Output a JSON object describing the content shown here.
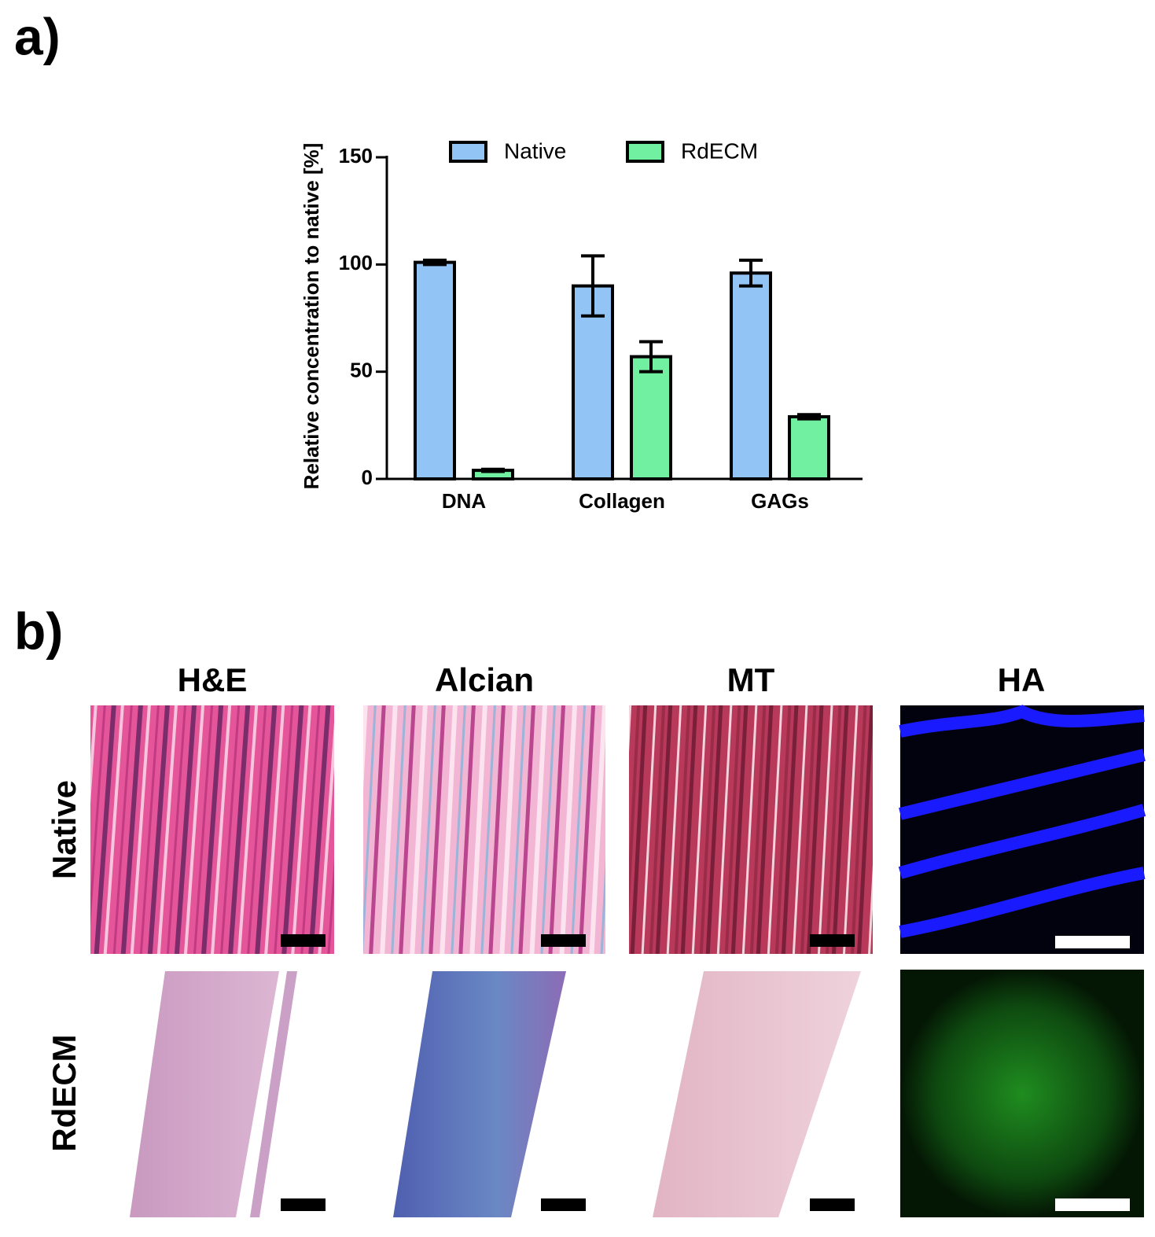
{
  "panel_labels": {
    "a": "a)",
    "b": "b)"
  },
  "chart_data": {
    "type": "bar",
    "ylabel": "Relative concentration to native [%]",
    "categories": [
      "DNA",
      "Collagen",
      "GAGs"
    ],
    "series": [
      {
        "name": "Native",
        "color": "#92c4f5",
        "values": [
          101,
          90,
          96
        ],
        "errors": [
          1,
          14,
          6
        ]
      },
      {
        "name": "RdECM",
        "color": "#72f0a2",
        "values": [
          4,
          57,
          29
        ],
        "errors": [
          0.5,
          7,
          1
        ]
      }
    ],
    "ylim": [
      0,
      150
    ],
    "yticks": [
      0,
      50,
      100,
      150
    ],
    "legend": "top"
  },
  "histology": {
    "columns": [
      "H&E",
      "Alcian",
      "MT",
      "HA"
    ],
    "rows": [
      "Native",
      "RdECM"
    ]
  }
}
